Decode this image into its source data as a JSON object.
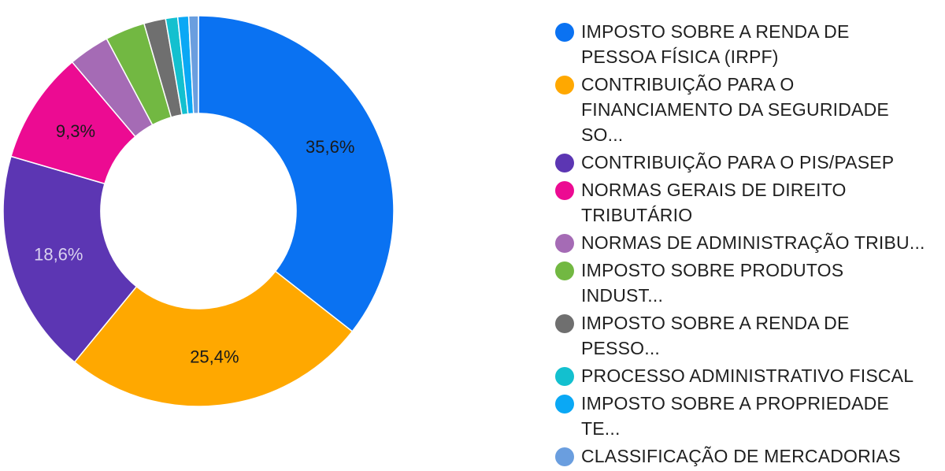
{
  "chart_data": {
    "type": "pie",
    "donut": true,
    "legend_position": "right",
    "series": [
      {
        "name": "IMPOSTO SOBRE A RENDA DE PESSOA FÍSICA (IRPF)",
        "value": 35.6,
        "color": "#0a72f2",
        "label": "35,6%",
        "label_color": "#1a1a1a"
      },
      {
        "name": "CONTRIBUIÇÃO PARA O FINANCIAMENTO DA SEGURIDADE SO...",
        "value": 25.4,
        "color": "#ffa800",
        "label": "25,4%",
        "label_color": "#1a1a1a"
      },
      {
        "name": "CONTRIBUIÇÃO PARA O PIS/PASEP",
        "value": 18.6,
        "color": "#5c36b3",
        "label": "18,6%",
        "label_color": "#d9d2ef"
      },
      {
        "name": "NORMAS GERAIS DE DIREITO TRIBUTÁRIO",
        "value": 9.3,
        "color": "#ec0b92",
        "label": "9,3%",
        "label_color": "#1a1a1a"
      },
      {
        "name": "NORMAS DE ADMINISTRAÇÃO TRIBU...",
        "value": 3.4,
        "color": "#a56bb5",
        "label": "",
        "label_color": "#1a1a1a"
      },
      {
        "name": "IMPOSTO SOBRE PRODUTOS INDUST...",
        "value": 3.3,
        "color": "#72b842",
        "label": "",
        "label_color": "#1a1a1a"
      },
      {
        "name": "IMPOSTO SOBRE A RENDA DE PESSO...",
        "value": 1.8,
        "color": "#6f6f6f",
        "label": "",
        "label_color": "#1a1a1a"
      },
      {
        "name": "PROCESSO ADMINISTRATIVO FISCAL",
        "value": 1.0,
        "color": "#13c0cf",
        "label": "",
        "label_color": "#1a1a1a"
      },
      {
        "name": "IMPOSTO SOBRE A PROPRIEDADE TE...",
        "value": 0.9,
        "color": "#0aa8f5",
        "label": "",
        "label_color": "#1a1a1a"
      },
      {
        "name": "CLASSIFICAÇÃO DE MERCADORIAS",
        "value": 0.8,
        "color": "#6a9edf",
        "label": "",
        "label_color": "#1a1a1a"
      }
    ]
  }
}
